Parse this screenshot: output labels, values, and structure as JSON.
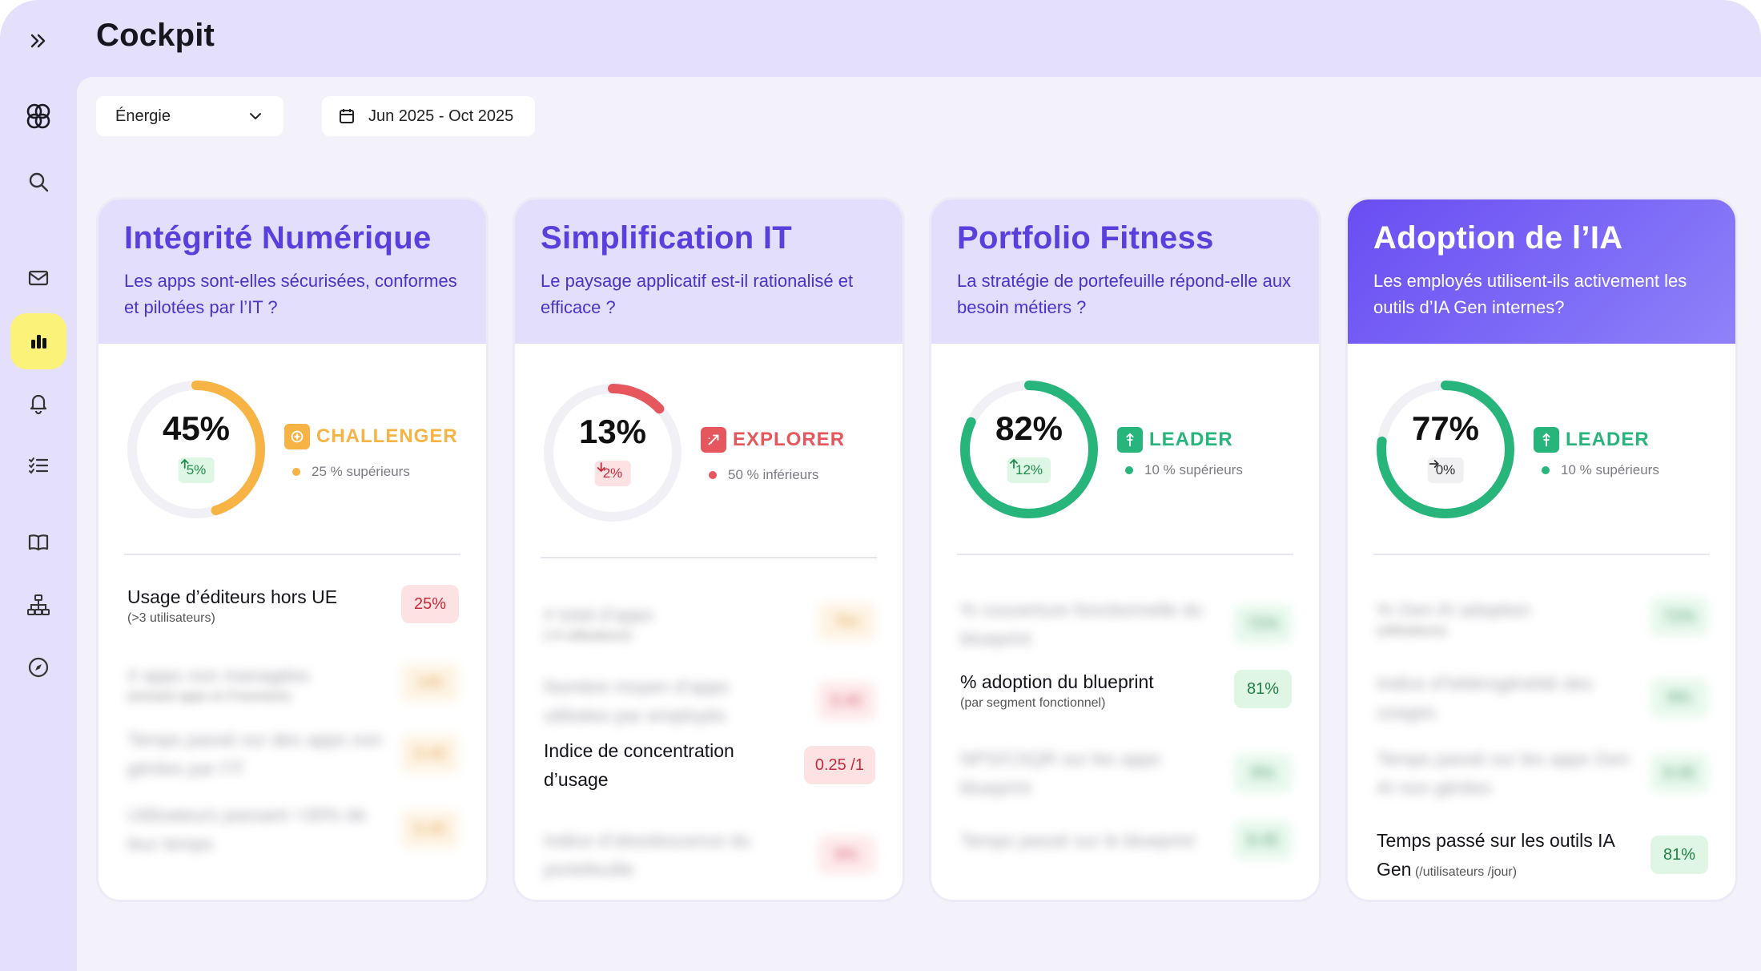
{
  "page_title": "Cockpit",
  "filters": {
    "domain": "Énergie",
    "date_range": "Jun 2025 - Oct 2025"
  },
  "sidebar": {
    "icons": [
      "expand-icon",
      "logo-icon",
      "search-icon",
      "mail-icon",
      "chart-icon",
      "bell-icon",
      "checklist-icon",
      "book-icon",
      "hierarchy-icon",
      "compass-icon"
    ],
    "active": "chart-icon"
  },
  "colors": {
    "accent": "#6a4df2",
    "challenger": "#f7b343",
    "explorer": "#e5575d",
    "leader": "#27b57b",
    "active_nav": "#fbf27a"
  },
  "cards": [
    {
      "title": "Intégrité Numérique",
      "subtitle": "Les apps sont-elles sécurisées, conformes et pilotées par l’IT ?",
      "score": "45%",
      "score_fraction": 0.45,
      "delta": "5%",
      "delta_dir": "up",
      "level": "CHALLENGER",
      "rank": "25 % supérieurs",
      "metrics": [
        {
          "label": "Usage d’éditeurs hors UE",
          "sub": "(>3 utilisateurs)",
          "value": "25%",
          "tone": "red",
          "blurred": false
        },
        {
          "label": "# apps non managées",
          "sub": "(incluant apps en Freemium)",
          "value": "14h",
          "tone": "orange",
          "blurred": true
        },
        {
          "label": "Temps passé sur des apps non gérées par l’IT",
          "sub": "",
          "value": "0.45",
          "tone": "orange",
          "blurred": true
        },
        {
          "label": "Utilisateurs passant >30% de leur temps",
          "sub": "",
          "value": "0.45",
          "tone": "orange",
          "blurred": true
        }
      ]
    },
    {
      "title": "Simplification IT",
      "subtitle": "Le paysage applicatif est-il rationalisé et efficace ?",
      "score": "13%",
      "score_fraction": 0.13,
      "delta": "2%",
      "delta_dir": "down",
      "level": "EXPLORER",
      "rank": "50 % inférieurs",
      "metrics": [
        {
          "label": "# total d’apps",
          "sub": "(>3 utilisateurs)",
          "value": "7kn",
          "tone": "orange",
          "blurred": true
        },
        {
          "label": "Nombre moyen d’apps utilisées par employés",
          "sub": "",
          "value": "0.45",
          "tone": "red",
          "blurred": true
        },
        {
          "label": "Indice de concentration d’usage",
          "sub": "",
          "value": "0.25 /1",
          "tone": "red",
          "blurred": false
        },
        {
          "label": "Indice d’obsolescence du portefeuille",
          "sub": "",
          "value": "9%",
          "tone": "red",
          "blurred": true
        }
      ]
    },
    {
      "title": "Portfolio Fitness",
      "subtitle": "La stratégie de portefeuille répond-elle aux besoin métiers ?",
      "score": "82%",
      "score_fraction": 0.82,
      "delta": "12%",
      "delta_dir": "up",
      "level": "LEADER",
      "rank": "10 % supérieurs",
      "metrics": [
        {
          "label": "% couverture fonctionnelle du blueprint",
          "sub": "",
          "value": "72%",
          "tone": "green",
          "blurred": true
        },
        {
          "label": "% adoption du blueprint",
          "sub": "(par segment fonctionnel)",
          "value": "81%",
          "tone": "green",
          "blurred": false
        },
        {
          "label": "NPS/CSQR sur les apps blueprint",
          "sub": "",
          "value": "8%",
          "tone": "green",
          "blurred": true
        },
        {
          "label": "Temps passé sur le blueprint",
          "sub": "",
          "value": "8.45",
          "tone": "green",
          "blurred": true
        }
      ]
    },
    {
      "title": "Adoption de l’IA",
      "subtitle": "Les employés utilisent-ils activement les outils d’IA Gen internes?",
      "score": "77%",
      "score_fraction": 0.77,
      "delta": "0%",
      "delta_dir": "flat",
      "level": "LEADER",
      "rank": "10 % supérieurs",
      "metrics": [
        {
          "label": "% Gen AI adoption",
          "sub": "(utilisateurs)",
          "value": "72%",
          "tone": "green",
          "blurred": true
        },
        {
          "label": "Indice d’hétérogénéité des usages",
          "sub": "",
          "value": "8%",
          "tone": "green",
          "blurred": true
        },
        {
          "label": "Temps passé sur les apps Gen AI non gérées",
          "sub": "",
          "value": "8.45",
          "tone": "green",
          "blurred": true
        },
        {
          "label": "Temps passé sur les outils IA Gen",
          "sub": "(/utilisateurs /jour)",
          "value": "81%",
          "tone": "green",
          "blurred": false
        }
      ]
    }
  ]
}
